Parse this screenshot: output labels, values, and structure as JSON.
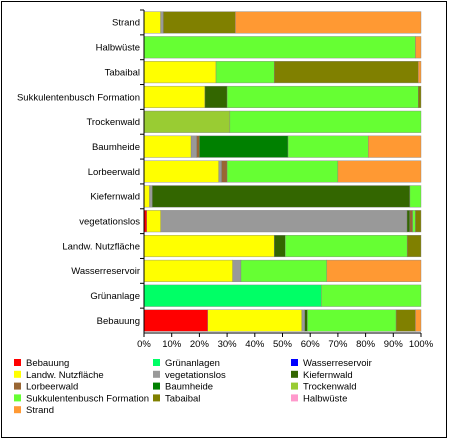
{
  "chart_data": {
    "type": "bar",
    "orientation": "horizontal",
    "stacked": "percent",
    "categories": [
      "Strand",
      "Halbwüste",
      "Tabaibal",
      "Sukkulentenbusch Formation",
      "Trockenwald",
      "Baumheide",
      "Lorbeerwald",
      "Kiefernwald",
      "vegetationslos",
      "Landw. Nutzfläche",
      "Wasserreservoir",
      "Grünanlage",
      "Bebauung"
    ],
    "x_ticks": [
      "0%",
      "10%",
      "20%",
      "30%",
      "40%",
      "50%",
      "60%",
      "70%",
      "80%",
      "90%",
      "100%"
    ],
    "xlim": [
      0,
      100
    ],
    "grid": false,
    "legend_position": "bottom",
    "series": [
      {
        "name": "Bebauung",
        "color": "#ff0000",
        "values": [
          0,
          0,
          0,
          0,
          0,
          0,
          0,
          0,
          1,
          0,
          0,
          0,
          23
        ]
      },
      {
        "name": "Grünanlagen",
        "color": "#00ff66",
        "values": [
          0,
          0,
          0,
          0,
          0,
          0,
          0,
          0,
          0,
          0,
          0,
          64,
          0
        ]
      },
      {
        "name": "Wasserreservoir",
        "color": "#0000ff",
        "values": [
          0,
          0,
          0,
          0,
          0,
          0,
          0,
          0,
          0,
          0,
          0,
          0,
          0
        ]
      },
      {
        "name": "Landw. Nutzfläche",
        "color": "#ffff00",
        "values": [
          6,
          0,
          26,
          22,
          0,
          17,
          27,
          2,
          5,
          47,
          32,
          0,
          34
        ]
      },
      {
        "name": "vegetationslos",
        "color": "#999999",
        "values": [
          1,
          0,
          0,
          0,
          0,
          2,
          1,
          1,
          88,
          0,
          3,
          0,
          1
        ]
      },
      {
        "name": "Kiefernwald",
        "color": "#336600",
        "values": [
          0,
          0,
          0,
          8,
          0,
          0,
          0,
          93,
          1,
          4,
          0,
          0,
          1
        ]
      },
      {
        "name": "Lorbeerwald",
        "color": "#996633",
        "values": [
          0,
          0,
          0,
          0,
          0,
          1,
          2,
          0,
          1,
          0,
          0,
          0,
          0
        ]
      },
      {
        "name": "Baumheide",
        "color": "#008000",
        "values": [
          0,
          0,
          0,
          0,
          0,
          32,
          0,
          0,
          0,
          0,
          0,
          0,
          0
        ]
      },
      {
        "name": "Trockenwald",
        "color": "#99cc33",
        "values": [
          0,
          0,
          0,
          0,
          31,
          0,
          0,
          0,
          0,
          0,
          0,
          0,
          0
        ]
      },
      {
        "name": "Sukkulentenbusch Formation",
        "color": "#66ff33",
        "values": [
          0,
          98,
          21,
          69,
          69,
          29,
          40,
          4,
          1,
          44,
          31,
          36,
          32
        ]
      },
      {
        "name": "Tabaibal",
        "color": "#808000",
        "values": [
          26,
          0,
          52,
          1,
          0,
          0,
          0,
          0,
          2,
          5,
          0,
          0,
          7
        ]
      },
      {
        "name": "Halbwüste",
        "color": "#ff99cc",
        "values": [
          0,
          0,
          0,
          0,
          0,
          0,
          0,
          0,
          0,
          0,
          0,
          0,
          0
        ]
      },
      {
        "name": "Strand",
        "color": "#ff9933",
        "values": [
          67,
          2,
          1,
          0,
          0,
          19,
          30,
          0,
          0,
          0,
          34,
          0,
          2
        ]
      }
    ]
  }
}
